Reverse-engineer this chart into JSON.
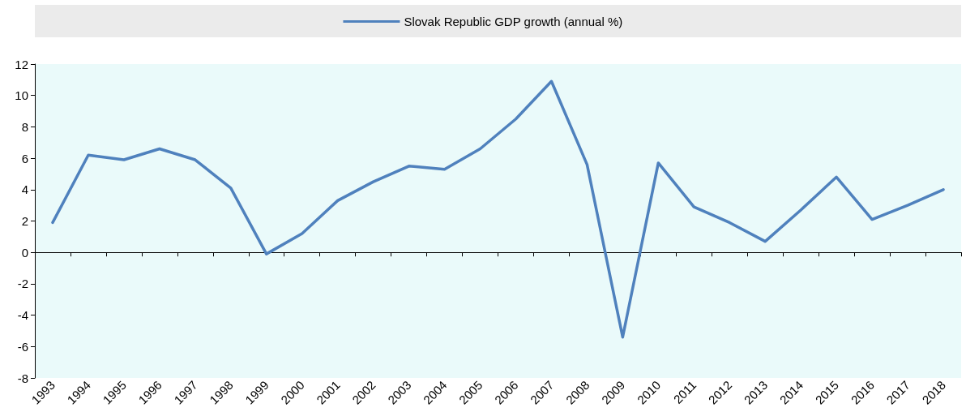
{
  "chart_data": {
    "type": "line",
    "categories": [
      "1993",
      "1994",
      "1995",
      "1996",
      "1997",
      "1998",
      "1999",
      "2000",
      "2001",
      "2002",
      "2003",
      "2004",
      "2005",
      "2006",
      "2007",
      "2008",
      "2009",
      "2010",
      "2011",
      "2012",
      "2013",
      "2014",
      "2015",
      "2016",
      "2017",
      "2018"
    ],
    "series": [
      {
        "name": "Slovak Republic GDP growth (annual %)",
        "color": "#4f81bd",
        "values": [
          1.9,
          6.2,
          5.9,
          6.6,
          5.9,
          4.1,
          -0.1,
          1.2,
          3.3,
          4.5,
          5.5,
          5.3,
          6.6,
          8.5,
          10.9,
          5.6,
          -5.4,
          5.7,
          2.9,
          1.9,
          0.7,
          2.7,
          4.8,
          2.1,
          3.0,
          4.0
        ]
      }
    ],
    "ylim": [
      -8,
      12
    ],
    "yticks": [
      -8,
      -6,
      -4,
      -2,
      0,
      2,
      4,
      6,
      8,
      10,
      12
    ],
    "legend": "top",
    "marker": "none",
    "line_style": "solid"
  }
}
